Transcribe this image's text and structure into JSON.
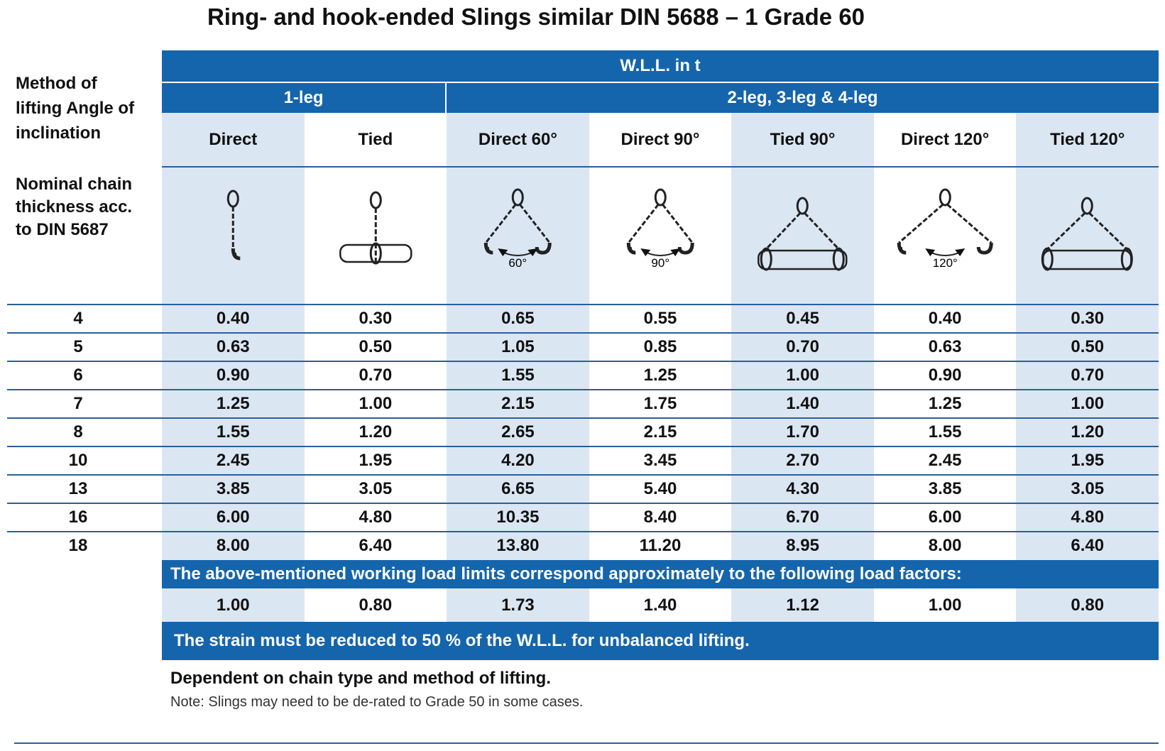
{
  "title": "Ring- and hook-ended Slings similar DIN 5688 – 1 Grade 60",
  "header": {
    "corner": "Method of lifting Angle of inclination",
    "wll": "W.L.L. in t",
    "groups": [
      "1-leg",
      "2-leg, 3-leg & 4-leg"
    ],
    "columns": [
      "Direct",
      "Tied",
      "Direct 60°",
      "Direct 90°",
      "Tied 90°",
      "Direct 120°",
      "Tied 120°"
    ],
    "thickness_label": "Nominal chain thickness acc. to DIN 5687"
  },
  "angle_labels": [
    "60°",
    "90°",
    "120°"
  ],
  "table": {
    "rows": [
      [
        "4",
        "0.40",
        "0.30",
        "0.65",
        "0.55",
        "0.45",
        "0.40",
        "0.30"
      ],
      [
        "5",
        "0.63",
        "0.50",
        "1.05",
        "0.85",
        "0.70",
        "0.63",
        "0.50"
      ],
      [
        "6",
        "0.90",
        "0.70",
        "1.55",
        "1.25",
        "1.00",
        "0.90",
        "0.70"
      ],
      [
        "7",
        "1.25",
        "1.00",
        "2.15",
        "1.75",
        "1.40",
        "1.25",
        "1.00"
      ],
      [
        "8",
        "1.55",
        "1.20",
        "2.65",
        "2.15",
        "1.70",
        "1.55",
        "1.20"
      ],
      [
        "10",
        "2.45",
        "1.95",
        "4.20",
        "3.45",
        "2.70",
        "2.45",
        "1.95"
      ],
      [
        "13",
        "3.85",
        "3.05",
        "6.65",
        "5.40",
        "4.30",
        "3.85",
        "3.05"
      ],
      [
        "16",
        "6.00",
        "4.80",
        "10.35",
        "8.40",
        "6.70",
        "6.00",
        "4.80"
      ],
      [
        "18",
        "8.00",
        "6.40",
        "13.80",
        "11.20",
        "8.95",
        "8.00",
        "6.40"
      ]
    ]
  },
  "load_factor_note": "The above-mentioned working load limits correspond approximately to the following load factors:",
  "load_factors": [
    "1.00",
    "0.80",
    "1.73",
    "1.40",
    "1.12",
    "1.00",
    "0.80"
  ],
  "strain_note": "The strain must be reduced to 50 % of the W.L.L. for unbalanced lifting.",
  "footer": {
    "dependent": "Dependent on chain type and method of lifting.",
    "note": "Note: Slings may need to be de-rated to Grade 50 in some cases."
  }
}
